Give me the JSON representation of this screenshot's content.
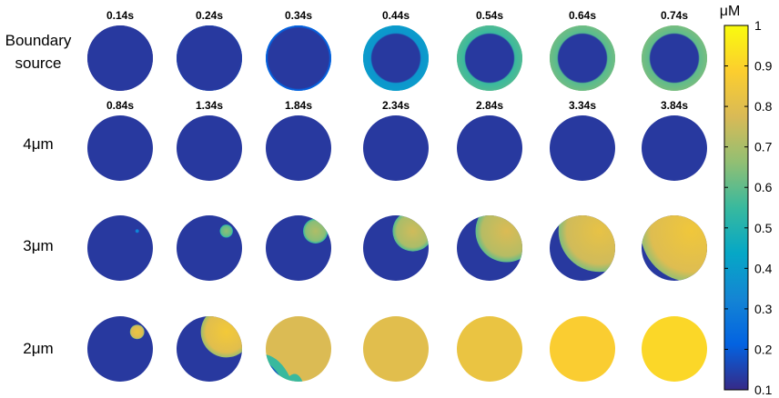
{
  "rows": [
    {
      "label_lines": [
        "Boundary",
        "source"
      ],
      "times": [
        "0.14s",
        "0.24s",
        "0.34s",
        "0.44s",
        "0.54s",
        "0.64s",
        "0.74s"
      ],
      "cells": [
        {
          "kind": "ring",
          "base": 0.13,
          "ring": 0.13
        },
        {
          "kind": "ring",
          "base": 0.13,
          "ring": 0.15
        },
        {
          "kind": "ring",
          "base": 0.13,
          "ring": 0.22
        },
        {
          "kind": "ring",
          "base": 0.13,
          "ring": 0.4
        },
        {
          "kind": "ring",
          "base": 0.13,
          "ring": 0.58
        },
        {
          "kind": "ring",
          "base": 0.13,
          "ring": 0.62
        },
        {
          "kind": "ring",
          "base": 0.13,
          "ring": 0.63
        }
      ]
    },
    {
      "label_lines": [
        "4μm"
      ],
      "times": [
        "0.84s",
        "1.34s",
        "1.84s",
        "2.34s",
        "2.84s",
        "3.34s",
        "3.84s"
      ],
      "cells": [
        {
          "kind": "uniform",
          "base": 0.13
        },
        {
          "kind": "uniform",
          "base": 0.13
        },
        {
          "kind": "uniform",
          "base": 0.13
        },
        {
          "kind": "uniform",
          "base": 0.13
        },
        {
          "kind": "uniform",
          "base": 0.13
        },
        {
          "kind": "uniform",
          "base": 0.13
        },
        {
          "kind": "uniform",
          "base": 0.13
        }
      ]
    },
    {
      "label_lines": [
        "3μm"
      ],
      "times": [],
      "cells": [
        {
          "kind": "wave",
          "base": 0.13,
          "wave": 0.3,
          "r": 0.06
        },
        {
          "kind": "wave",
          "base": 0.13,
          "wave": 0.6,
          "r": 0.2
        },
        {
          "kind": "wave",
          "base": 0.13,
          "wave": 0.65,
          "r": 0.38
        },
        {
          "kind": "wave",
          "base": 0.13,
          "wave": 0.7,
          "r": 0.62
        },
        {
          "kind": "wave",
          "base": 0.13,
          "wave": 0.72,
          "r": 0.95
        },
        {
          "kind": "wave",
          "base": 0.13,
          "wave": 0.76,
          "r": 1.25
        },
        {
          "kind": "wave",
          "base": 0.13,
          "wave": 0.79,
          "r": 1.55
        }
      ]
    },
    {
      "label_lines": [
        "2μm"
      ],
      "times": [],
      "cells": [
        {
          "kind": "wave",
          "base": 0.13,
          "wave": 0.78,
          "r": 0.22
        },
        {
          "kind": "wave",
          "base": 0.13,
          "wave": 0.8,
          "r": 0.78
        },
        {
          "kind": "late",
          "base": 0.78
        },
        {
          "kind": "uniform",
          "base": 0.8
        },
        {
          "kind": "uniform",
          "base": 0.83
        },
        {
          "kind": "uniform",
          "base": 0.88
        },
        {
          "kind": "uniform",
          "base": 0.91
        }
      ]
    }
  ],
  "colorbar": {
    "unit": "μM",
    "min": 0.1,
    "max": 1,
    "ticks": [
      "0.1",
      "0.2",
      "0.3",
      "0.4",
      "0.5",
      "0.6",
      "0.7",
      "0.8",
      "0.9",
      "1"
    ]
  },
  "colors": {
    "parula": [
      "#352a87",
      "#0363e1",
      "#1485d4",
      "#06a7c6",
      "#38b99e",
      "#92bf73",
      "#d9ba56",
      "#fcce2e",
      "#f9fb0e"
    ]
  }
}
